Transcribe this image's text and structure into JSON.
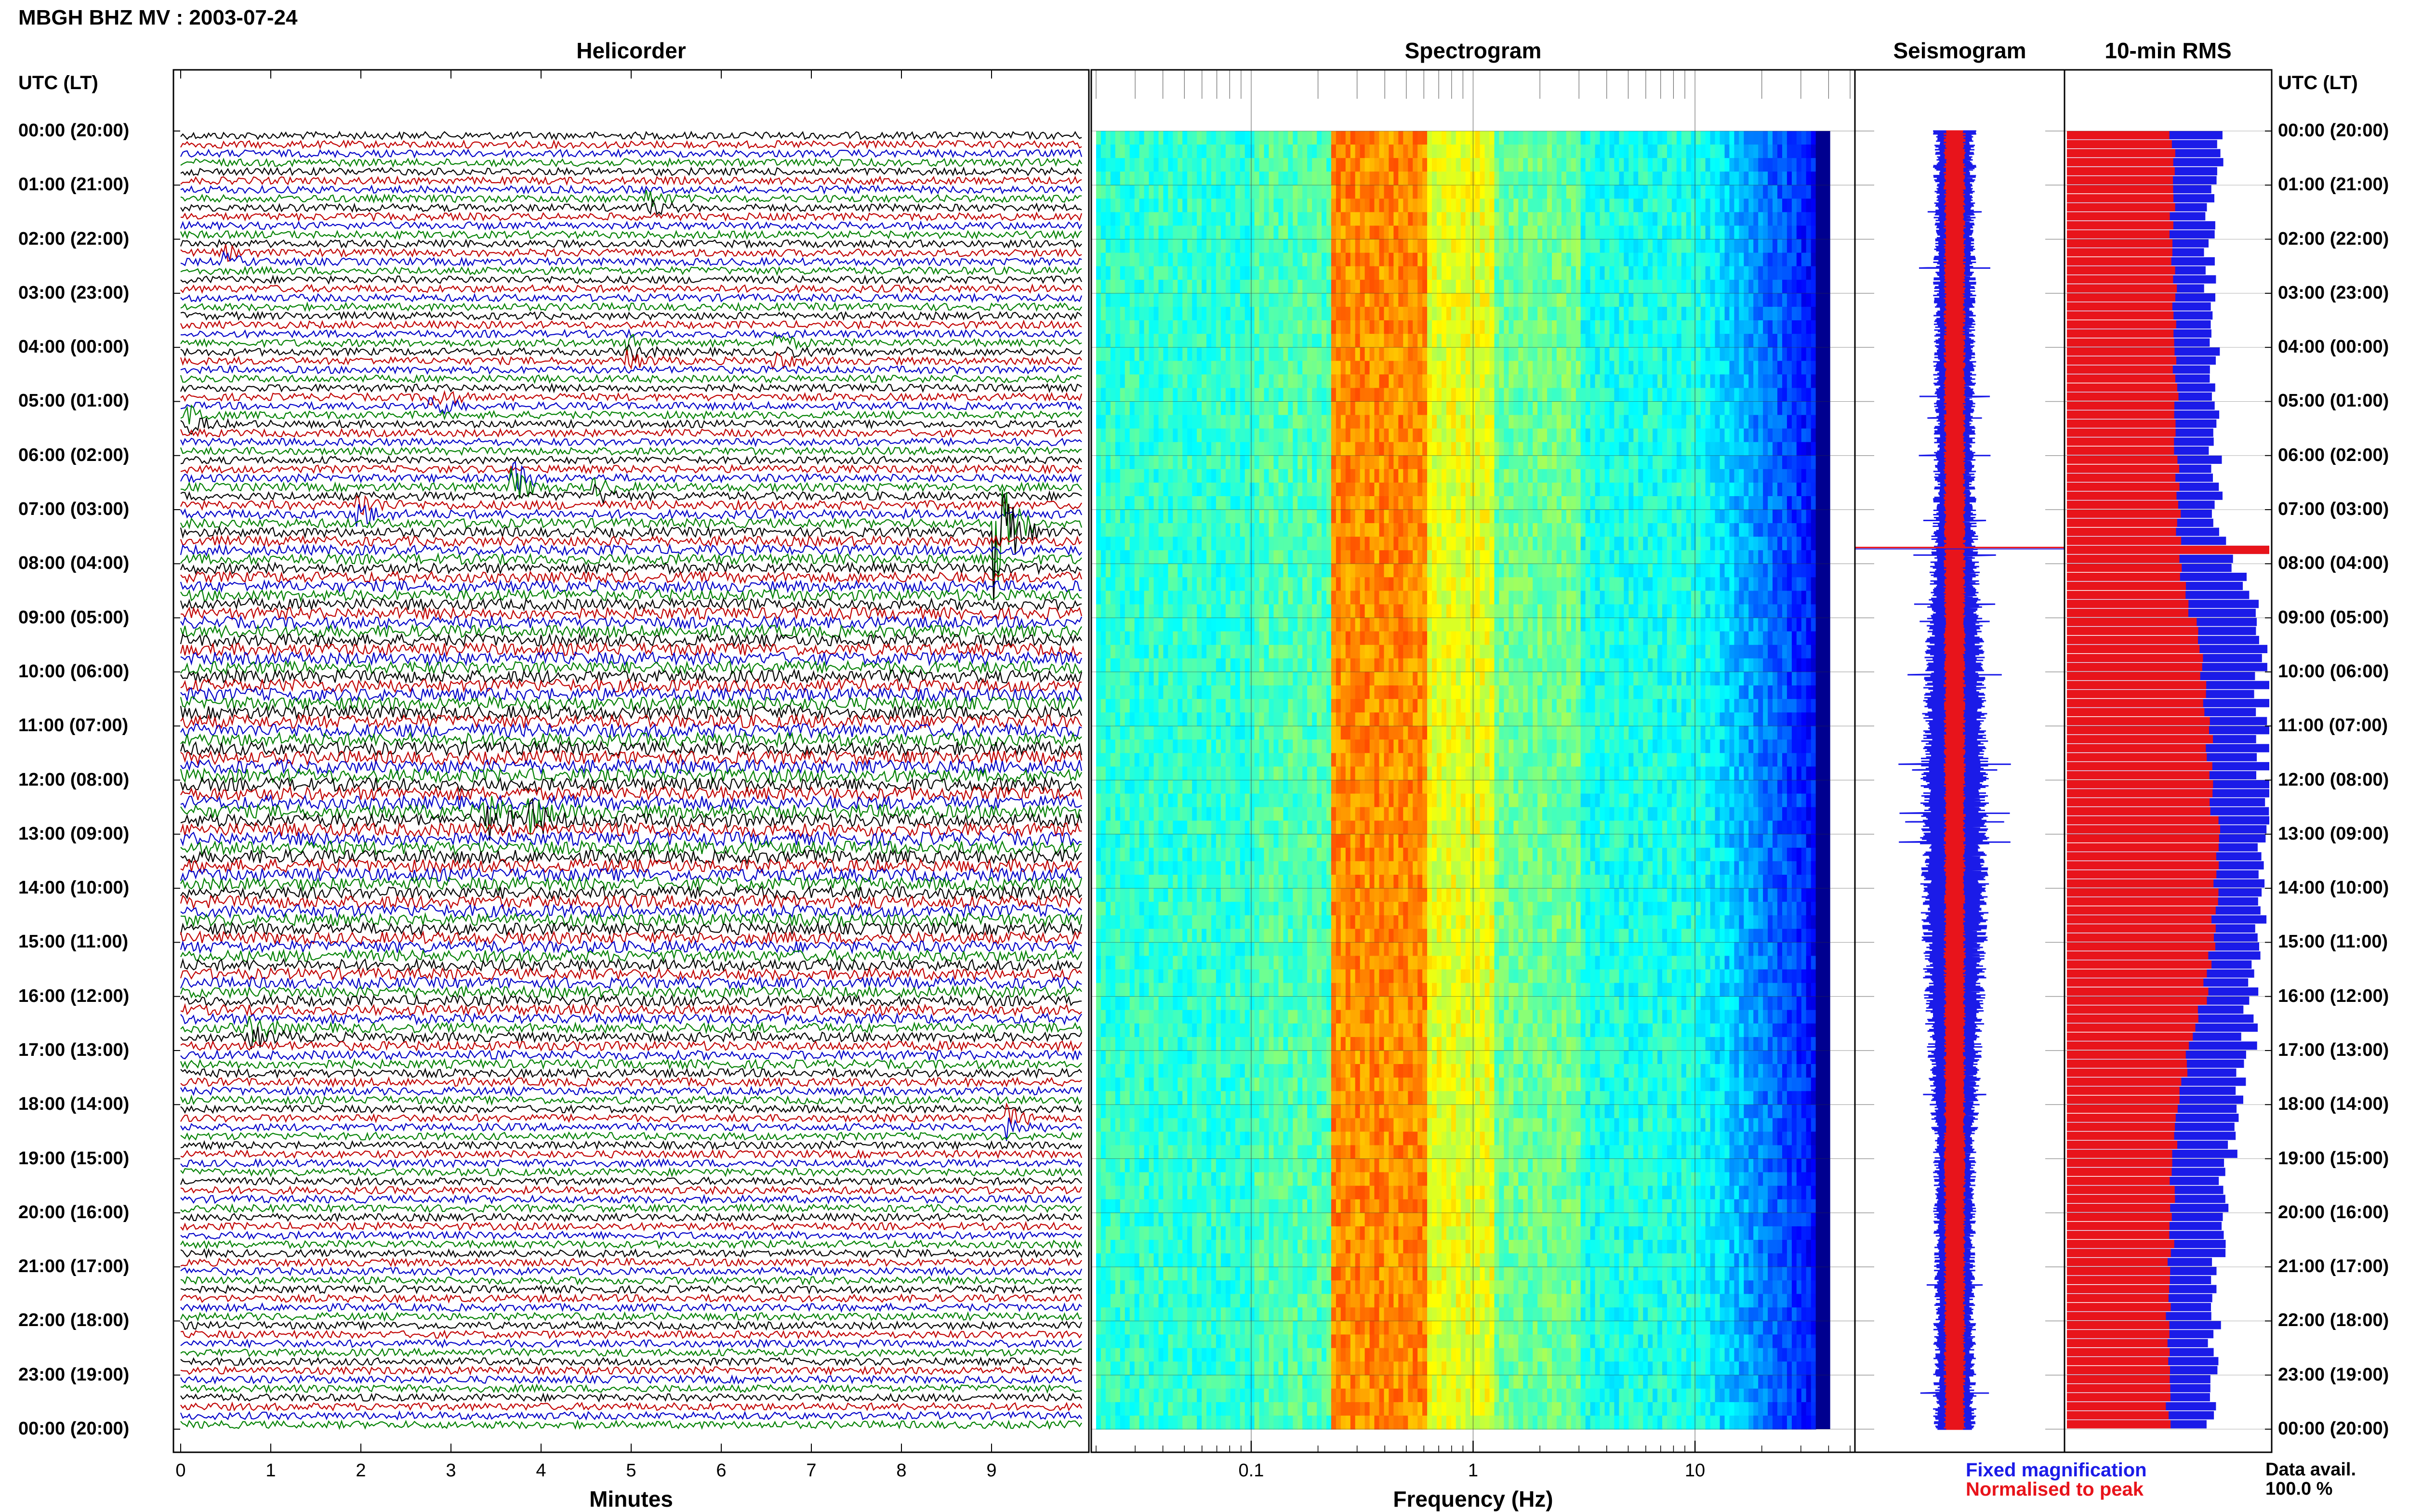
{
  "header": {
    "title": "MBGH BHZ MV : 2003-07-24",
    "utc_label": "UTC (LT)"
  },
  "panels": {
    "helicorder": "Helicorder",
    "spectrogram": "Spectrogram",
    "seismogram": "Seismogram",
    "rms": "10-min RMS"
  },
  "time_labels": [
    "00:00 (20:00)",
    "01:00 (21:00)",
    "02:00 (22:00)",
    "03:00 (23:00)",
    "04:00 (00:00)",
    "05:00 (01:00)",
    "06:00 (02:00)",
    "07:00 (03:00)",
    "08:00 (04:00)",
    "09:00 (05:00)",
    "10:00 (06:00)",
    "11:00 (07:00)",
    "12:00 (08:00)",
    "13:00 (09:00)",
    "14:00 (10:00)",
    "15:00 (11:00)",
    "16:00 (12:00)",
    "17:00 (13:00)",
    "18:00 (14:00)",
    "19:00 (15:00)",
    "20:00 (16:00)",
    "21:00 (17:00)",
    "22:00 (18:00)",
    "23:00 (19:00)",
    "00:00 (20:00)"
  ],
  "colors": {
    "trace_cycle": [
      "#000000",
      "#c00000",
      "#0000c8",
      "#008000"
    ],
    "fixed_magnification": "#1b1be8",
    "normalised_to_peak": "#e8141b"
  },
  "legend": {
    "fixed_magnification": "Fixed magnification",
    "normalised_to_peak": "Normalised to peak"
  },
  "availability": {
    "label": "Data avail.",
    "value": "100.0 %"
  },
  "chart_data": [
    {
      "type": "line",
      "name": "helicorder",
      "title": "Helicorder",
      "xlabel": "Minutes",
      "x_ticks": [
        "0",
        "1",
        "2",
        "3",
        "4",
        "5",
        "6",
        "7",
        "8",
        "9"
      ],
      "xlim": [
        0,
        10
      ],
      "lines_per_hour": 6,
      "hours": 24,
      "events": [
        {
          "hour": 1.2,
          "minute": 5.2,
          "amp": 0.6
        },
        {
          "hour": 2.3,
          "minute": 0.5,
          "amp": 0.5
        },
        {
          "hour": 4.0,
          "minute": 5.0,
          "amp": 0.6
        },
        {
          "hour": 4.0,
          "minute": 6.6,
          "amp": 0.7
        },
        {
          "hour": 4.9,
          "minute": 2.8,
          "amp": 1.0
        },
        {
          "hour": 5.2,
          "minute": 0.1,
          "amp": 0.8
        },
        {
          "hour": 6.4,
          "minute": 3.7,
          "amp": 1.4
        },
        {
          "hour": 6.6,
          "minute": 4.6,
          "amp": 0.6
        },
        {
          "hour": 6.9,
          "minute": 2.0,
          "amp": 0.8
        },
        {
          "hour": 7.3,
          "minute": 9.05,
          "amp": 4.5
        },
        {
          "hour": 12.6,
          "minute": 3.4,
          "amp": 0.9
        },
        {
          "hour": 12.6,
          "minute": 3.9,
          "amp": 0.8
        },
        {
          "hour": 16.6,
          "minute": 0.8,
          "amp": 0.8
        },
        {
          "hour": 18.3,
          "minute": 9.2,
          "amp": 0.8
        }
      ]
    },
    {
      "type": "heatmap",
      "name": "spectrogram",
      "title": "Spectrogram",
      "xlabel": "Frequency (Hz)",
      "x_scale": "log",
      "xlim": [
        0.02,
        50
      ],
      "x_ticks": [
        "0.1",
        "1",
        "10"
      ],
      "peak_band_hz": [
        0.22,
        0.6
      ],
      "upper_cutoff_hz": 35
    },
    {
      "type": "line",
      "name": "seismogram",
      "title": "Seismogram",
      "series": [
        {
          "name": "Fixed magnification"
        },
        {
          "name": "Normalised to peak"
        }
      ],
      "spike_hour": 7.7
    },
    {
      "type": "bar",
      "name": "rms",
      "title": "10-min RMS",
      "orientation": "horizontal",
      "bars_per_hour": 6,
      "series": [
        {
          "name": "Fixed magnification",
          "hourly_level": [
            0.78,
            0.72,
            0.7,
            0.71,
            0.72,
            0.75,
            0.73,
            0.74,
            0.85,
            0.93,
            0.97,
            0.98,
            0.98,
            0.98,
            0.96,
            0.97,
            0.92,
            0.9,
            0.84,
            0.8,
            0.76,
            0.74,
            0.73,
            0.72,
            0.71
          ]
        },
        {
          "name": "Normalised to peak",
          "hourly_level": [
            0.52,
            0.52,
            0.52,
            0.53,
            0.53,
            0.54,
            0.54,
            0.55,
            0.56,
            0.63,
            0.67,
            0.7,
            0.72,
            0.74,
            0.74,
            0.72,
            0.68,
            0.6,
            0.55,
            0.52,
            0.52,
            0.51,
            0.5,
            0.5,
            0.5
          ]
        }
      ],
      "peak_hour": 7.7
    }
  ]
}
